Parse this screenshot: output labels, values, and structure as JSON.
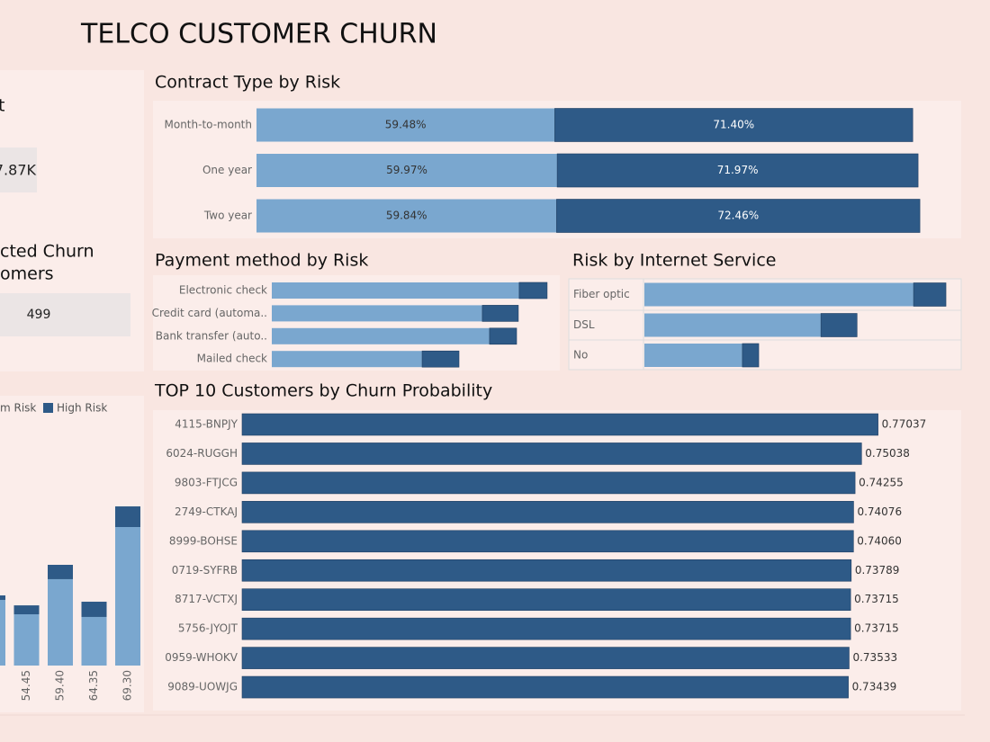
{
  "header": {
    "title": "TELCO CUSTOMER CHURN"
  },
  "kpis": [
    {
      "label_lines": [
        "t"
      ],
      "value": "7.87K"
    },
    {
      "label_lines": [
        "cted Churn",
        "omers"
      ],
      "value": "499"
    }
  ],
  "chart_data": [
    {
      "type": "vbar",
      "stacked": true,
      "categories": [
        null,
        "54.45",
        "59.40",
        "64.35",
        "69.30"
      ],
      "series": [
        {
          "name": "m Risk",
          "color": "#7aa7cf",
          "values": [
            52.1,
            40.7,
            68.6,
            38.6,
            110
          ]
        },
        {
          "name": "High Risk",
          "color": "#2e5a87",
          "values": [
            3.6,
            7.1,
            11.4,
            12.1,
            16.4
          ]
        }
      ],
      "ylim": [
        0,
        200
      ]
    },
    {
      "type": "hbar",
      "stacked": true,
      "title": "Contract Type by Risk",
      "categories": [
        "Month-to-month",
        "One year",
        "Two year"
      ],
      "series": [
        {
          "color": "#7aa7cf",
          "values": [
            59.48,
            59.97,
            59.84
          ],
          "value_labels": [
            "59.48%",
            "59.97%",
            "59.84%"
          ]
        },
        {
          "color": "#2e5a87",
          "values": [
            71.4,
            71.97,
            72.46
          ],
          "value_labels": [
            "71.40%",
            "71.97%",
            "72.46%"
          ]
        }
      ],
      "xlim": [
        0,
        140
      ]
    },
    {
      "type": "hbar",
      "stacked": true,
      "title": "Payment method by Risk",
      "categories": [
        "Electronic check",
        "Credit card (automa..",
        "Bank transfer (auto..",
        "Mailed check"
      ],
      "series": [
        {
          "color": "#7aa7cf",
          "values": [
            85.9,
            73.1,
            75.6,
            52.2
          ]
        },
        {
          "color": "#2e5a87",
          "values": [
            9.7,
            12.5,
            9.4,
            12.8
          ]
        }
      ],
      "xlim": [
        0,
        100
      ]
    },
    {
      "type": "hbar",
      "stacked": true,
      "title": "Risk by Internet Service",
      "categories": [
        "Fiber optic",
        "DSL",
        "No"
      ],
      "series": [
        {
          "color": "#7aa7cf",
          "values": [
            85.7,
            56.2,
            31.2
          ]
        },
        {
          "color": "#2e5a87",
          "values": [
            10.3,
            11.5,
            5.2
          ]
        }
      ],
      "xlim": [
        0,
        100
      ]
    },
    {
      "type": "hbar",
      "title": "TOP 10 Customers by Churn Probability",
      "categories": [
        "4115-BNPJY",
        "6024-RUGGH",
        "9803-FTJCG",
        "2749-CTKAJ",
        "8999-BOHSE",
        "0719-SYFRB",
        "8717-VCTXJ",
        "5756-JYOJT",
        "0959-WHOKV",
        "9089-UOWJG"
      ],
      "values": [
        0.77037,
        0.75038,
        0.74255,
        0.74076,
        0.7406,
        0.73789,
        0.73715,
        0.73715,
        0.73533,
        0.73439
      ],
      "value_labels": [
        "0.77037",
        "0.75038",
        "0.74255",
        "0.74076",
        "0.74060",
        "0.73789",
        "0.73715",
        "0.73715",
        "0.73533",
        "0.73439"
      ],
      "color": "#2e5a87",
      "xlim": [
        0,
        0.87
      ]
    }
  ]
}
